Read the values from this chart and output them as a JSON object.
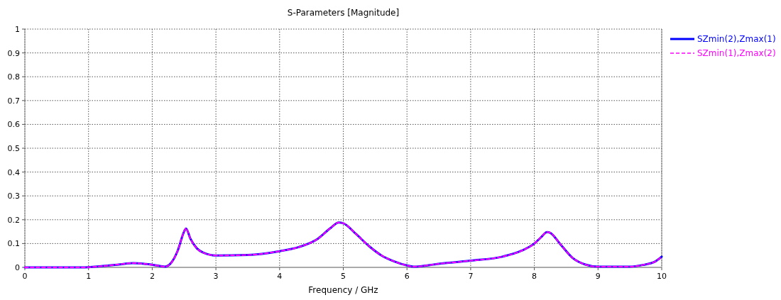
{
  "chart_data": {
    "type": "line",
    "title": "S-Parameters [Magnitude]",
    "xlabel": "Frequency / GHz",
    "x": [
      0,
      0.9,
      1.2,
      1.5,
      1.7,
      1.9,
      2.1,
      2.2,
      2.3,
      2.4,
      2.5,
      2.53,
      2.6,
      2.7,
      2.8,
      3.0,
      3.5,
      4.0,
      4.3,
      4.6,
      4.8,
      4.93,
      5.0,
      5.2,
      5.4,
      5.6,
      5.8,
      6.0,
      6.1,
      6.5,
      7.0,
      7.5,
      7.8,
      8.0,
      8.1,
      8.2,
      8.25,
      8.4,
      8.6,
      8.8,
      9.0,
      9.5,
      9.7,
      9.9,
      10
    ],
    "series": [
      {
        "name": "SZmin(2),Zmax(1)",
        "color": "#0000ff",
        "line_style": "solid",
        "values": [
          0,
          0,
          0.005,
          0.013,
          0.018,
          0.014,
          0.007,
          0.003,
          0.02,
          0.07,
          0.15,
          0.163,
          0.12,
          0.08,
          0.062,
          0.05,
          0.052,
          0.068,
          0.085,
          0.12,
          0.165,
          0.188,
          0.185,
          0.14,
          0.09,
          0.05,
          0.025,
          0.008,
          0.003,
          0.015,
          0.028,
          0.045,
          0.07,
          0.1,
          0.125,
          0.148,
          0.145,
          0.1,
          0.04,
          0.012,
          0.003,
          0.003,
          0.01,
          0.025,
          0.045
        ]
      },
      {
        "name": "SZmin(1),Zmax(2)",
        "color": "#ff00ff",
        "line_style": "dashed",
        "values": [
          0,
          0,
          0.005,
          0.013,
          0.018,
          0.014,
          0.007,
          0.003,
          0.02,
          0.07,
          0.15,
          0.163,
          0.12,
          0.08,
          0.062,
          0.05,
          0.052,
          0.068,
          0.085,
          0.12,
          0.165,
          0.188,
          0.185,
          0.14,
          0.09,
          0.05,
          0.025,
          0.008,
          0.003,
          0.015,
          0.028,
          0.045,
          0.07,
          0.1,
          0.125,
          0.148,
          0.145,
          0.1,
          0.04,
          0.012,
          0.003,
          0.003,
          0.01,
          0.025,
          0.045
        ]
      }
    ],
    "xlim": [
      0,
      10
    ],
    "xticks": [
      0,
      1,
      2,
      3,
      4,
      5,
      6,
      7,
      8,
      9,
      10
    ],
    "ylim": [
      0,
      1
    ],
    "yticks": [
      0,
      0.1,
      0.2,
      0.3,
      0.4,
      0.5,
      0.6,
      0.7,
      0.8,
      0.9,
      1
    ],
    "grid": true,
    "legend": "top right",
    "marker": "none"
  }
}
